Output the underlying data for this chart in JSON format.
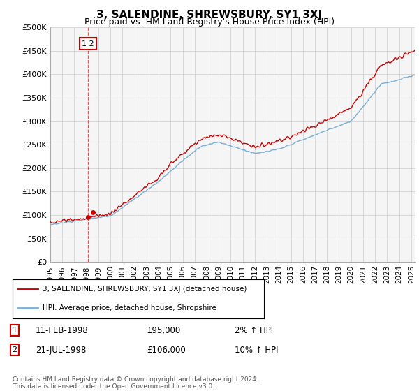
{
  "title": "3, SALENDINE, SHREWSBURY, SY1 3XJ",
  "subtitle": "Price paid vs. HM Land Registry's House Price Index (HPI)",
  "red_label": "3, SALENDINE, SHREWSBURY, SY1 3XJ (detached house)",
  "blue_label": "HPI: Average price, detached house, Shropshire",
  "footer": "Contains HM Land Registry data © Crown copyright and database right 2024.\nThis data is licensed under the Open Government Licence v3.0.",
  "transaction1_date": "11-FEB-1998",
  "transaction1_price": "£95,000",
  "transaction1_hpi": "2% ↑ HPI",
  "transaction2_date": "21-JUL-1998",
  "transaction2_price": "£106,000",
  "transaction2_hpi": "10% ↑ HPI",
  "ylim": [
    0,
    500000
  ],
  "yticks": [
    0,
    50000,
    100000,
    150000,
    200000,
    250000,
    300000,
    350000,
    400000,
    450000,
    500000
  ],
  "ytick_labels": [
    "£0",
    "£50K",
    "£100K",
    "£150K",
    "£200K",
    "£250K",
    "£300K",
    "£350K",
    "£400K",
    "£450K",
    "£500K"
  ],
  "red_color": "#cc0000",
  "blue_color": "#7aadd4",
  "dot_color": "#cc0000",
  "grid_color": "#cccccc",
  "bg_color": "#ffffff",
  "plot_bg": "#f5f5f5",
  "transaction1_x": 1998.12,
  "transaction2_x": 1998.55,
  "transaction1_y": 95000,
  "transaction2_y": 106000,
  "vline_x": 1998.12,
  "xlim_start": 1995.0,
  "xlim_end": 2025.3
}
